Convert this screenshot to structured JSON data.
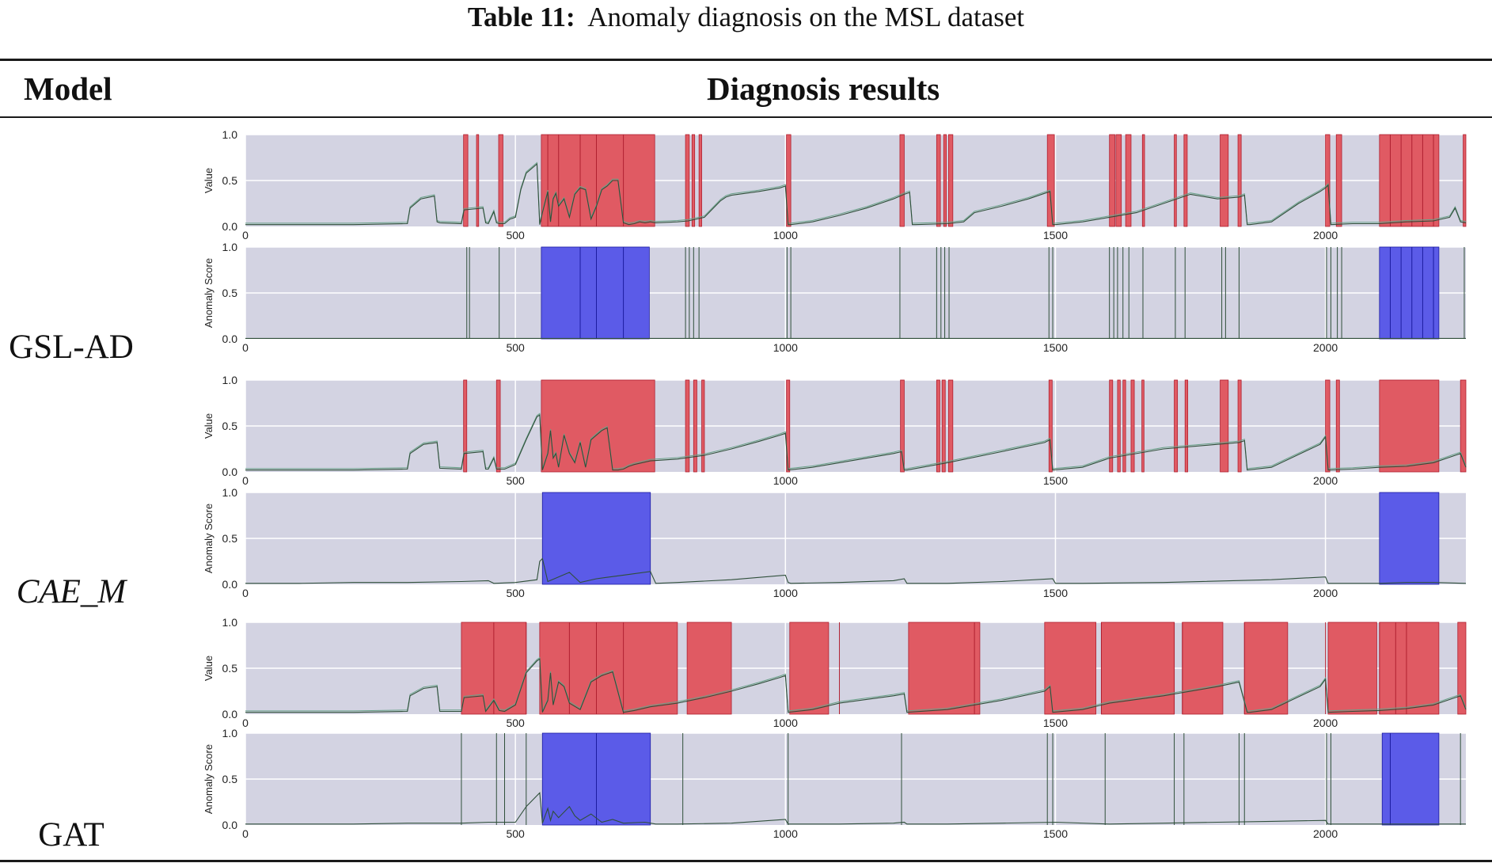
{
  "caption": {
    "label": "Table 11:",
    "text": "Anomaly diagnosis on the MSL dataset"
  },
  "table": {
    "columns": [
      "Model",
      "Diagnosis results"
    ]
  },
  "colors": {
    "panel_bg": "#d3d3e2",
    "anomaly_red": "#e05a63",
    "anomaly_blue": "#5b5be8",
    "series_dark": "#2f4f3a",
    "series_light": "#6aa28a"
  },
  "chart_data": [
    {
      "type": "line",
      "model": "GSL-AD",
      "panel": "value",
      "ylabel": "Value",
      "ylim": [
        0,
        1
      ],
      "xlim": [
        0,
        2260
      ],
      "yticks": [
        "0.0",
        "0.5",
        "1.0"
      ],
      "xticks": [
        0,
        500,
        1000,
        1500,
        2000
      ],
      "x": [
        0,
        100,
        200,
        300,
        305,
        325,
        350,
        355,
        360,
        400,
        405,
        440,
        445,
        450,
        460,
        465,
        470,
        480,
        490,
        500,
        510,
        520,
        540,
        545,
        550,
        560,
        565,
        570,
        575,
        580,
        590,
        600,
        610,
        620,
        630,
        640,
        650,
        660,
        670,
        680,
        690,
        700,
        710,
        720,
        730,
        740,
        750,
        760,
        800,
        820,
        850,
        880,
        890,
        900,
        950,
        990,
        1000,
        1005,
        1010,
        1050,
        1100,
        1150,
        1200,
        1220,
        1230,
        1235,
        1240,
        1300,
        1330,
        1350,
        1400,
        1450,
        1480,
        1490,
        1495,
        1500,
        1550,
        1600,
        1650,
        1700,
        1750,
        1800,
        1840,
        1850,
        1855,
        1860,
        1900,
        1950,
        1990,
        2000,
        2005,
        2010,
        2050,
        2100,
        2150,
        2200,
        2230,
        2240,
        2250,
        2260
      ],
      "y": [
        0.02,
        0.02,
        0.02,
        0.03,
        0.2,
        0.3,
        0.33,
        0.05,
        0.04,
        0.03,
        0.18,
        0.2,
        0.04,
        0.03,
        0.16,
        0.04,
        0.03,
        0.03,
        0.08,
        0.1,
        0.4,
        0.58,
        0.68,
        0.02,
        0.15,
        0.38,
        0.05,
        0.3,
        0.36,
        0.22,
        0.3,
        0.1,
        0.35,
        0.42,
        0.4,
        0.08,
        0.22,
        0.4,
        0.44,
        0.5,
        0.5,
        0.04,
        0.02,
        0.03,
        0.05,
        0.04,
        0.05,
        0.04,
        0.05,
        0.06,
        0.1,
        0.28,
        0.32,
        0.34,
        0.38,
        0.42,
        0.44,
        0.02,
        0.02,
        0.05,
        0.12,
        0.2,
        0.3,
        0.35,
        0.37,
        0.02,
        0.02,
        0.03,
        0.05,
        0.15,
        0.22,
        0.3,
        0.36,
        0.38,
        0.02,
        0.02,
        0.05,
        0.1,
        0.15,
        0.25,
        0.35,
        0.3,
        0.32,
        0.34,
        0.02,
        0.02,
        0.05,
        0.25,
        0.38,
        0.42,
        0.45,
        0.02,
        0.03,
        0.03,
        0.05,
        0.06,
        0.1,
        0.2,
        0.05,
        0.04
      ],
      "anomaly_spans": [
        [
          404,
          412
        ],
        [
          428,
          432
        ],
        [
          469,
          477
        ],
        [
          548,
          758
        ],
        [
          815,
          822
        ],
        [
          827,
          832
        ],
        [
          840,
          845
        ],
        [
          1002,
          1010
        ],
        [
          1212,
          1220
        ],
        [
          1280,
          1287
        ],
        [
          1293,
          1298
        ],
        [
          1302,
          1310
        ],
        [
          1485,
          1498
        ],
        [
          1600,
          1610
        ],
        [
          1612,
          1622
        ],
        [
          1630,
          1640
        ],
        [
          1661,
          1665
        ],
        [
          1720,
          1724
        ],
        [
          1738,
          1744
        ],
        [
          1805,
          1820
        ],
        [
          1838,
          1844
        ],
        [
          2000,
          2008
        ],
        [
          2020,
          2030
        ],
        [
          2100,
          2210
        ],
        [
          2255,
          2260
        ]
      ],
      "anomaly_lines": [
        560,
        580,
        620,
        650,
        700,
        2120,
        2140,
        2160,
        2180,
        2200
      ]
    },
    {
      "type": "line",
      "model": "GSL-AD",
      "panel": "score",
      "ylabel": "Anomaly Score",
      "ylim": [
        0,
        1
      ],
      "xlim": [
        0,
        2260
      ],
      "yticks": [
        "0.0",
        "0.5",
        "1.0"
      ],
      "xticks": [
        0,
        500,
        1000,
        1500,
        2000
      ],
      "x": [
        0,
        500,
        1000,
        1500,
        2000,
        2260
      ],
      "y": [
        0.005,
        0.005,
        0.005,
        0.005,
        0.005,
        0.005
      ],
      "spikes": [
        410,
        415,
        470,
        815,
        822,
        830,
        840,
        1003,
        1010,
        1212,
        1280,
        1288,
        1295,
        1303,
        1488,
        1495,
        1600,
        1608,
        1615,
        1625,
        1636,
        1662,
        1722,
        1740,
        1808,
        1815,
        1840,
        2002,
        2010,
        2022,
        2030,
        2257
      ],
      "anomaly_spans": [
        [
          548,
          748
        ],
        [
          2100,
          2210
        ]
      ],
      "anomaly_lines": [
        620,
        650,
        700,
        2120,
        2140,
        2160,
        2180,
        2200
      ]
    },
    {
      "type": "line",
      "model": "CAE_M",
      "panel": "value",
      "ylabel": "Value",
      "ylim": [
        0,
        1
      ],
      "xlim": [
        0,
        2260
      ],
      "yticks": [
        "0.0",
        "0.5",
        "1.0"
      ],
      "xticks": [
        0,
        500,
        1000,
        1500,
        2000
      ],
      "x": [
        0,
        100,
        200,
        300,
        305,
        330,
        355,
        360,
        400,
        405,
        440,
        445,
        450,
        460,
        465,
        480,
        500,
        520,
        540,
        545,
        550,
        560,
        565,
        570,
        575,
        580,
        590,
        600,
        610,
        620,
        630,
        640,
        650,
        660,
        670,
        680,
        690,
        700,
        710,
        720,
        750,
        800,
        850,
        900,
        950,
        990,
        1000,
        1005,
        1050,
        1100,
        1200,
        1215,
        1220,
        1225,
        1300,
        1400,
        1480,
        1490,
        1495,
        1550,
        1600,
        1700,
        1800,
        1840,
        1850,
        1855,
        1900,
        1990,
        2000,
        2005,
        2050,
        2100,
        2150,
        2200,
        2240,
        2250,
        2260
      ],
      "y": [
        0.02,
        0.02,
        0.02,
        0.03,
        0.2,
        0.3,
        0.32,
        0.04,
        0.03,
        0.2,
        0.22,
        0.03,
        0.03,
        0.15,
        0.03,
        0.03,
        0.08,
        0.35,
        0.6,
        0.62,
        0.02,
        0.2,
        0.45,
        0.15,
        0.2,
        0.05,
        0.4,
        0.2,
        0.1,
        0.32,
        0.05,
        0.35,
        0.4,
        0.45,
        0.48,
        0.02,
        0.02,
        0.03,
        0.06,
        0.08,
        0.12,
        0.14,
        0.18,
        0.25,
        0.33,
        0.4,
        0.42,
        0.02,
        0.05,
        0.1,
        0.2,
        0.22,
        0.02,
        0.02,
        0.1,
        0.22,
        0.32,
        0.35,
        0.02,
        0.05,
        0.15,
        0.25,
        0.3,
        0.32,
        0.34,
        0.02,
        0.05,
        0.3,
        0.38,
        0.02,
        0.03,
        0.05,
        0.06,
        0.1,
        0.18,
        0.2,
        0.05
      ],
      "anomaly_spans": [
        [
          404,
          410
        ],
        [
          465,
          472
        ],
        [
          548,
          758
        ],
        [
          815,
          822
        ],
        [
          830,
          836
        ],
        [
          845,
          850
        ],
        [
          1002,
          1008
        ],
        [
          1213,
          1220
        ],
        [
          1280,
          1286
        ],
        [
          1290,
          1296
        ],
        [
          1302,
          1310
        ],
        [
          1488,
          1494
        ],
        [
          1600,
          1606
        ],
        [
          1615,
          1620
        ],
        [
          1625,
          1630
        ],
        [
          1640,
          1646
        ],
        [
          1660,
          1664
        ],
        [
          1720,
          1726
        ],
        [
          1740,
          1745
        ],
        [
          1805,
          1820
        ],
        [
          1838,
          1844
        ],
        [
          2000,
          2008
        ],
        [
          2020,
          2026
        ],
        [
          2100,
          2210
        ],
        [
          2250,
          2260
        ]
      ],
      "anomaly_lines": []
    },
    {
      "type": "line",
      "model": "CAE_M",
      "panel": "score",
      "ylabel": "Anomaly Score",
      "ylim": [
        0,
        1
      ],
      "xlim": [
        0,
        2260
      ],
      "yticks": [
        "0.0",
        "0.5",
        "1.0"
      ],
      "xticks": [
        0,
        500,
        1000,
        1500,
        2000
      ],
      "x": [
        0,
        100,
        200,
        300,
        400,
        450,
        460,
        500,
        540,
        545,
        550,
        560,
        600,
        620,
        650,
        700,
        750,
        760,
        800,
        900,
        1000,
        1005,
        1010,
        1100,
        1200,
        1220,
        1225,
        1300,
        1400,
        1495,
        1500,
        1550,
        1700,
        1900,
        2000,
        2005,
        2050,
        2100,
        2150,
        2200,
        2260
      ],
      "y": [
        0.01,
        0.01,
        0.02,
        0.02,
        0.03,
        0.04,
        0.01,
        0.02,
        0.05,
        0.25,
        0.28,
        0.03,
        0.13,
        0.02,
        0.06,
        0.1,
        0.14,
        0.01,
        0.02,
        0.05,
        0.1,
        0.02,
        0.01,
        0.02,
        0.04,
        0.06,
        0.01,
        0.01,
        0.03,
        0.06,
        0.01,
        0.01,
        0.02,
        0.05,
        0.08,
        0.01,
        0.01,
        0.01,
        0.02,
        0.02,
        0.01
      ],
      "anomaly_spans": [
        [
          550,
          750
        ],
        [
          2100,
          2210
        ]
      ],
      "anomaly_lines": []
    },
    {
      "type": "line",
      "model": "GAT",
      "panel": "value",
      "ylabel": "Value",
      "ylim": [
        0,
        1
      ],
      "xlim": [
        0,
        2260
      ],
      "yticks": [
        "0.0",
        "0.5",
        "1.0"
      ],
      "xticks": [
        0,
        500,
        1000,
        1500,
        2000
      ],
      "x": [
        0,
        100,
        200,
        300,
        305,
        330,
        355,
        360,
        400,
        405,
        440,
        445,
        460,
        470,
        480,
        500,
        520,
        540,
        545,
        550,
        560,
        565,
        570,
        580,
        590,
        600,
        620,
        640,
        660,
        680,
        700,
        720,
        750,
        800,
        850,
        900,
        950,
        990,
        1000,
        1005,
        1050,
        1100,
        1200,
        1220,
        1225,
        1300,
        1400,
        1480,
        1490,
        1495,
        1550,
        1600,
        1700,
        1800,
        1840,
        1855,
        1860,
        1900,
        1990,
        2000,
        2005,
        2050,
        2100,
        2150,
        2200,
        2240,
        2250,
        2260
      ],
      "y": [
        0.02,
        0.02,
        0.02,
        0.03,
        0.2,
        0.28,
        0.3,
        0.03,
        0.03,
        0.18,
        0.2,
        0.03,
        0.15,
        0.04,
        0.03,
        0.1,
        0.45,
        0.58,
        0.6,
        0.02,
        0.15,
        0.45,
        0.1,
        0.35,
        0.3,
        0.12,
        0.05,
        0.35,
        0.42,
        0.46,
        0.02,
        0.04,
        0.08,
        0.12,
        0.18,
        0.25,
        0.33,
        0.4,
        0.42,
        0.02,
        0.05,
        0.12,
        0.2,
        0.22,
        0.02,
        0.05,
        0.15,
        0.25,
        0.3,
        0.02,
        0.05,
        0.12,
        0.2,
        0.3,
        0.35,
        0.02,
        0.02,
        0.05,
        0.3,
        0.38,
        0.02,
        0.03,
        0.04,
        0.06,
        0.1,
        0.18,
        0.2,
        0.05
      ],
      "anomaly_spans": [
        [
          400,
          520
        ],
        [
          545,
          800
        ],
        [
          818,
          900
        ],
        [
          1008,
          1080
        ],
        [
          1228,
          1360
        ],
        [
          1480,
          1575
        ],
        [
          1585,
          1720
        ],
        [
          1735,
          1810
        ],
        [
          1850,
          1930
        ],
        [
          2005,
          2095
        ],
        [
          2100,
          2210
        ],
        [
          2245,
          2260
        ]
      ],
      "anomaly_lines": [
        460,
        520,
        600,
        650,
        700,
        1100,
        1350,
        1585,
        1720,
        1735,
        1850,
        2000,
        2100,
        2130,
        2150
      ]
    },
    {
      "type": "line",
      "model": "GAT",
      "panel": "score",
      "ylabel": "Anomaly Score",
      "ylim": [
        0,
        1
      ],
      "xlim": [
        0,
        2260
      ],
      "yticks": [
        "0.0",
        "0.5",
        "1.0"
      ],
      "xticks": [
        0,
        500,
        1000,
        1500,
        2000
      ],
      "x": [
        0,
        100,
        200,
        300,
        400,
        450,
        500,
        520,
        540,
        545,
        550,
        560,
        565,
        570,
        580,
        600,
        610,
        620,
        640,
        660,
        680,
        700,
        740,
        750,
        760,
        800,
        900,
        1000,
        1005,
        1010,
        1100,
        1200,
        1220,
        1225,
        1300,
        1400,
        1500,
        1600,
        1700,
        1800,
        1900,
        2000,
        2005,
        2100,
        2200,
        2260
      ],
      "y": [
        0.01,
        0.01,
        0.01,
        0.02,
        0.02,
        0.03,
        0.03,
        0.2,
        0.32,
        0.35,
        0.02,
        0.18,
        0.05,
        0.15,
        0.08,
        0.2,
        0.1,
        0.05,
        0.12,
        0.03,
        0.06,
        0.02,
        0.03,
        0.02,
        0.01,
        0.01,
        0.02,
        0.06,
        0.01,
        0.01,
        0.01,
        0.02,
        0.03,
        0.01,
        0.01,
        0.02,
        0.03,
        0.01,
        0.02,
        0.03,
        0.04,
        0.05,
        0.01,
        0.01,
        0.01,
        0.01
      ],
      "spikes": [
        400,
        465,
        480,
        520,
        810,
        1005,
        1215,
        1485,
        1495,
        1592,
        1720,
        1738,
        1840,
        1850,
        2002,
        2010,
        2250
      ],
      "anomaly_spans": [
        [
          550,
          750
        ],
        [
          2105,
          2210
        ]
      ],
      "anomaly_lines": [
        650,
        2120
      ]
    }
  ],
  "rows": [
    {
      "model": "GSL-AD"
    },
    {
      "model": "CAE_M"
    },
    {
      "model": "GAT"
    }
  ]
}
